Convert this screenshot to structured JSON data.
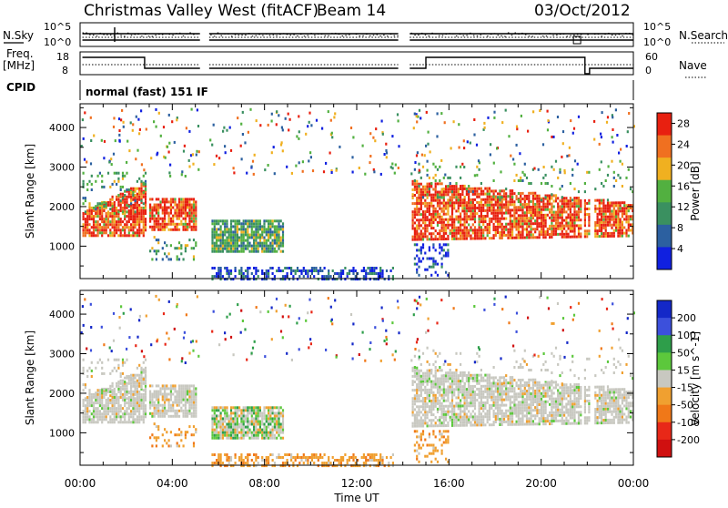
{
  "header": {
    "title": "Christmas Valley West (fitACF)",
    "beam": "Beam 14",
    "date": "03/Oct/2012"
  },
  "panels": {
    "nsky": {
      "left_label": "N.Sky",
      "right_label": "N.Search",
      "left_ticks": [
        "10^5",
        "10^0"
      ],
      "right_ticks": [
        "10^5",
        "10^0"
      ]
    },
    "freq": {
      "left_label_1": "Freq.",
      "left_label_2": "[MHz]",
      "right_label": "Nave",
      "left_ticks": [
        "18",
        "8"
      ],
      "right_ticks": [
        "60",
        "0"
      ]
    },
    "cpid": {
      "label": "CPID",
      "program": "normal (fast) 151 IF"
    }
  },
  "chart_data": [
    {
      "type": "heatmap",
      "title": "",
      "xlabel": "Time UT",
      "ylabel": "Slant Range [km]",
      "xlim": [
        "00:00",
        "24:00"
      ],
      "ylim": [
        180,
        4600
      ],
      "x_ticks": [
        "00:00",
        "04:00",
        "08:00",
        "12:00",
        "16:00",
        "20:00",
        "00:00"
      ],
      "y_ticks": [
        1000,
        2000,
        3000,
        4000
      ],
      "colorbar": {
        "label": "Power [dB]",
        "ticks": [
          4,
          8,
          12,
          16,
          20,
          24,
          28
        ],
        "range": [
          0,
          30
        ],
        "colors": [
          "#1020e0",
          "#2c60a0",
          "#3a9060",
          "#52b040",
          "#f0b020",
          "#f07020",
          "#e82010"
        ]
      },
      "data_gaps_hours": [
        [
          5.2,
          5.6
        ],
        [
          13.8,
          14.3
        ],
        [
          21.7,
          21.85
        ],
        [
          22.1,
          22.25
        ]
      ],
      "echo_regions": [
        {
          "time_start": 0.1,
          "time_end": 2.8,
          "range_low": 1300,
          "range_high": 2700,
          "level": "high"
        },
        {
          "time_start": 3.0,
          "time_end": 5.0,
          "range_low": 1400,
          "range_high": 2300,
          "level": "high"
        },
        {
          "time_start": 5.7,
          "time_end": 8.8,
          "range_low": 900,
          "range_high": 1700,
          "level": "medium"
        },
        {
          "time_start": 5.7,
          "time_end": 13.6,
          "range_low": 200,
          "range_high": 500,
          "level": "low"
        },
        {
          "time_start": 14.3,
          "time_end": 24.0,
          "range_low": 1200,
          "range_high": 2700,
          "level": "high"
        }
      ]
    },
    {
      "type": "heatmap",
      "title": "",
      "xlabel": "Time UT",
      "ylabel": "Slant Range [km]",
      "xlim": [
        "00:00",
        "24:00"
      ],
      "ylim": [
        180,
        4600
      ],
      "x_ticks": [
        "00:00",
        "04:00",
        "08:00",
        "12:00",
        "16:00",
        "20:00",
        "00:00"
      ],
      "y_ticks": [
        1000,
        2000,
        3000,
        4000
      ],
      "colorbar": {
        "label": "Velocity [m s^-1]",
        "ticks": [
          "200",
          "100",
          "50",
          "15",
          "-15",
          "-50",
          "-100",
          "-200"
        ],
        "colors": [
          "#1428c8",
          "#3c50dc",
          "#2e9e4a",
          "#5cc83c",
          "#c8c8c0",
          "#f0a030",
          "#f07818",
          "#e82818",
          "#d01010"
        ]
      }
    }
  ]
}
